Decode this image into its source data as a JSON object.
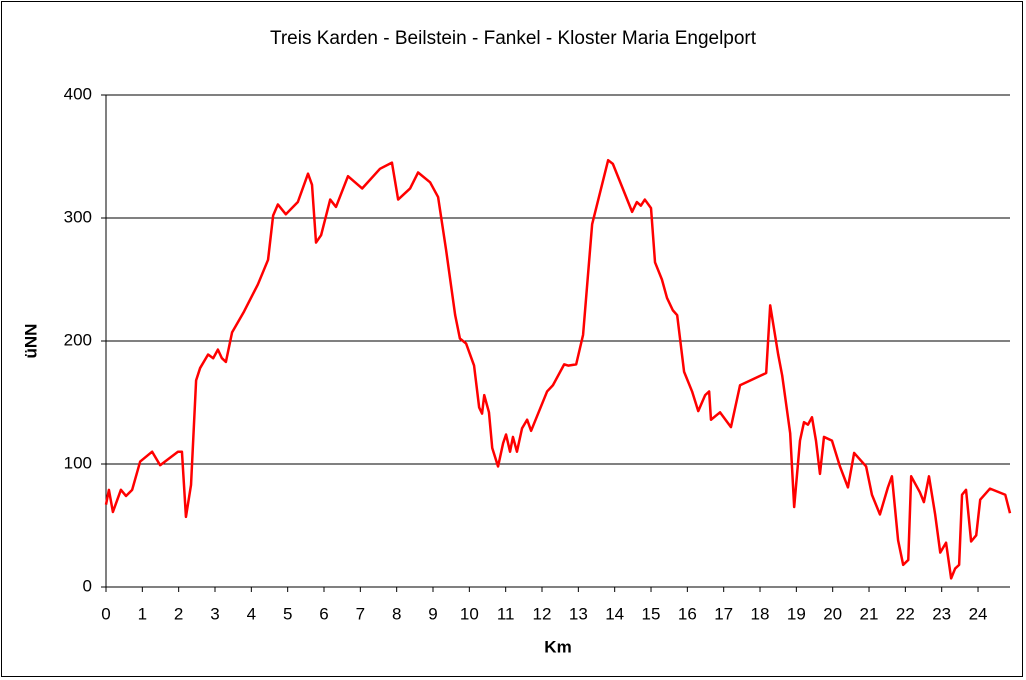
{
  "chart_data": {
    "type": "line",
    "title": "Treis Karden - Beilstein - Fankel - Kloster Maria Engelport",
    "x_label": "Km",
    "y_label": "üNN",
    "x": [
      0,
      0.08,
      0.19,
      0.41,
      0.55,
      0.72,
      0.94,
      1.27,
      1.49,
      1.98,
      2.09,
      2.2,
      2.34,
      2.48,
      2.59,
      2.81,
      2.95,
      3.08,
      3.19,
      3.3,
      3.47,
      3.8,
      4.18,
      4.46,
      4.6,
      4.73,
      4.95,
      5.28,
      5.56,
      5.67,
      5.78,
      5.92,
      6.17,
      6.33,
      6.66,
      7.05,
      7.54,
      7.87,
      8.04,
      8.37,
      8.59,
      8.92,
      9.14,
      9.36,
      9.61,
      9.74,
      9.91,
      10.13,
      10.27,
      10.35,
      10.41,
      10.54,
      10.63,
      10.79,
      10.93,
      11.01,
      11.12,
      11.2,
      11.31,
      11.45,
      11.59,
      11.7,
      12.14,
      12.3,
      12.61,
      12.72,
      12.94,
      13.13,
      13.38,
      13.82,
      13.95,
      14.48,
      14.61,
      14.72,
      14.83,
      15.0,
      15.11,
      15.3,
      15.44,
      15.6,
      15.72,
      15.91,
      16.13,
      16.3,
      16.49,
      16.6,
      16.65,
      16.9,
      17.2,
      17.45,
      18.17,
      18.28,
      18.5,
      18.61,
      18.83,
      18.94,
      19.1,
      19.21,
      19.32,
      19.43,
      19.54,
      19.65,
      19.76,
      19.98,
      20.2,
      20.42,
      20.59,
      20.92,
      21.08,
      21.3,
      21.52,
      21.63,
      21.8,
      21.94,
      22.08,
      22.16,
      22.4,
      22.51,
      22.65,
      22.82,
      22.96,
      23.12,
      23.26,
      23.37,
      23.48,
      23.56,
      23.67,
      23.81,
      23.95,
      24.06,
      24.33,
      24.75,
      24.88
    ],
    "series": [
      {
        "color": "#ff0000",
        "values": [
          67,
          79,
          61,
          79,
          74,
          79,
          102,
          110,
          99,
          110,
          110,
          57,
          83,
          168,
          178,
          189,
          186,
          193,
          186,
          183,
          207,
          224,
          246,
          266,
          302,
          311,
          303,
          313,
          336,
          327,
          280,
          286,
          315,
          309,
          334,
          324,
          340,
          345,
          315,
          324,
          337,
          329,
          317,
          274,
          221,
          202,
          198,
          180,
          146,
          141,
          156,
          142,
          113,
          98,
          117,
          124,
          110,
          122,
          110,
          129,
          136,
          127,
          159,
          164,
          181,
          180,
          181,
          205,
          295,
          347,
          344,
          305,
          313,
          310,
          315,
          308,
          264,
          250,
          235,
          225,
          221,
          175,
          159,
          143,
          156,
          159,
          136,
          142,
          130,
          164,
          174,
          229,
          189,
          172,
          125,
          65,
          119,
          134,
          132,
          138,
          119,
          92,
          122,
          119,
          98,
          81,
          109,
          98,
          75,
          59,
          81,
          90,
          38,
          18,
          22,
          90,
          77,
          69,
          90,
          59,
          28,
          36,
          7,
          15,
          18,
          75,
          79,
          37,
          42,
          71,
          80,
          75,
          60
        ]
      }
    ],
    "xlim": [
      0,
      24.88
    ],
    "ylim": [
      0,
      400
    ],
    "xticks": [
      0,
      1,
      2,
      3,
      4,
      5,
      6,
      7,
      8,
      9,
      10,
      11,
      12,
      13,
      14,
      15,
      16,
      17,
      18,
      19,
      20,
      21,
      22,
      23,
      24
    ],
    "yticks": [
      0,
      100,
      200,
      300,
      400
    ],
    "grid": true
  }
}
